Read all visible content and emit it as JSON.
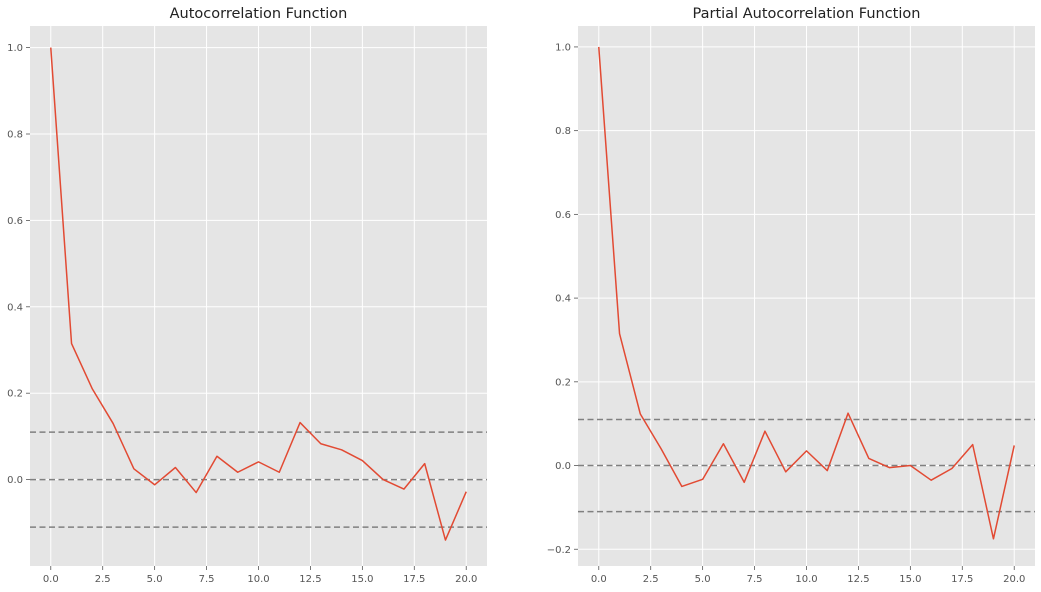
{
  "chart_data": [
    {
      "type": "line",
      "title": "Autocorrelation Function",
      "xlabel": "",
      "ylabel": "",
      "xlim": [
        -1,
        21
      ],
      "ylim": [
        -0.2,
        1.05
      ],
      "xticks": [
        0.0,
        2.5,
        5.0,
        7.5,
        10.0,
        12.5,
        15.0,
        17.5,
        20.0
      ],
      "xtick_labels": [
        "0.0",
        "2.5",
        "5.0",
        "7.5",
        "10.0",
        "12.5",
        "15.0",
        "17.5",
        "20.0"
      ],
      "yticks": [
        0.0,
        0.2,
        0.4,
        0.6,
        0.8,
        1.0
      ],
      "ytick_labels": [
        "0.0",
        "0.2",
        "0.4",
        "0.6",
        "0.8",
        "1.0"
      ],
      "grid": true,
      "series": [
        {
          "color": "#E24A33",
          "x": [
            0,
            1,
            2,
            3,
            4,
            5,
            6,
            7,
            8,
            9,
            10,
            11,
            12,
            13,
            14,
            15,
            16,
            17,
            18,
            19,
            20
          ],
          "values": [
            1.0,
            0.315,
            0.21,
            0.13,
            0.025,
            -0.012,
            0.028,
            -0.03,
            0.054,
            0.017,
            0.041,
            0.017,
            0.132,
            0.083,
            0.069,
            0.044,
            0.0,
            -0.022,
            0.037,
            -0.14,
            -0.028
          ]
        }
      ],
      "reference_lines": [
        {
          "y": 0.11,
          "color": "#808080",
          "style": "dashed"
        },
        {
          "y": 0.0,
          "color": "#808080",
          "style": "dashed"
        },
        {
          "y": -0.11,
          "color": "#808080",
          "style": "dashed"
        }
      ]
    },
    {
      "type": "line",
      "title": "Partial Autocorrelation Function",
      "xlabel": "",
      "ylabel": "",
      "xlim": [
        -1,
        21
      ],
      "ylim": [
        -0.24,
        1.05
      ],
      "xticks": [
        0.0,
        2.5,
        5.0,
        7.5,
        10.0,
        12.5,
        15.0,
        17.5,
        20.0
      ],
      "xtick_labels": [
        "0.0",
        "2.5",
        "5.0",
        "7.5",
        "10.0",
        "12.5",
        "15.0",
        "17.5",
        "20.0"
      ],
      "yticks": [
        -0.2,
        0.0,
        0.2,
        0.4,
        0.6,
        0.8,
        1.0
      ],
      "ytick_labels": [
        "−0.2",
        "0.0",
        "0.2",
        "0.4",
        "0.6",
        "0.8",
        "1.0"
      ],
      "grid": true,
      "series": [
        {
          "color": "#E24A33",
          "x": [
            0,
            1,
            2,
            3,
            4,
            5,
            6,
            7,
            8,
            9,
            10,
            11,
            12,
            13,
            14,
            15,
            16,
            17,
            18,
            19,
            20
          ],
          "values": [
            1.0,
            0.315,
            0.123,
            0.04,
            -0.05,
            -0.033,
            0.052,
            -0.04,
            0.082,
            -0.015,
            0.035,
            -0.012,
            0.125,
            0.017,
            -0.005,
            0.0,
            -0.035,
            -0.007,
            0.05,
            -0.175,
            0.048
          ]
        }
      ],
      "reference_lines": [
        {
          "y": 0.11,
          "color": "#808080",
          "style": "dashed"
        },
        {
          "y": 0.0,
          "color": "#808080",
          "style": "dashed"
        },
        {
          "y": -0.11,
          "color": "#808080",
          "style": "dashed"
        }
      ]
    }
  ]
}
